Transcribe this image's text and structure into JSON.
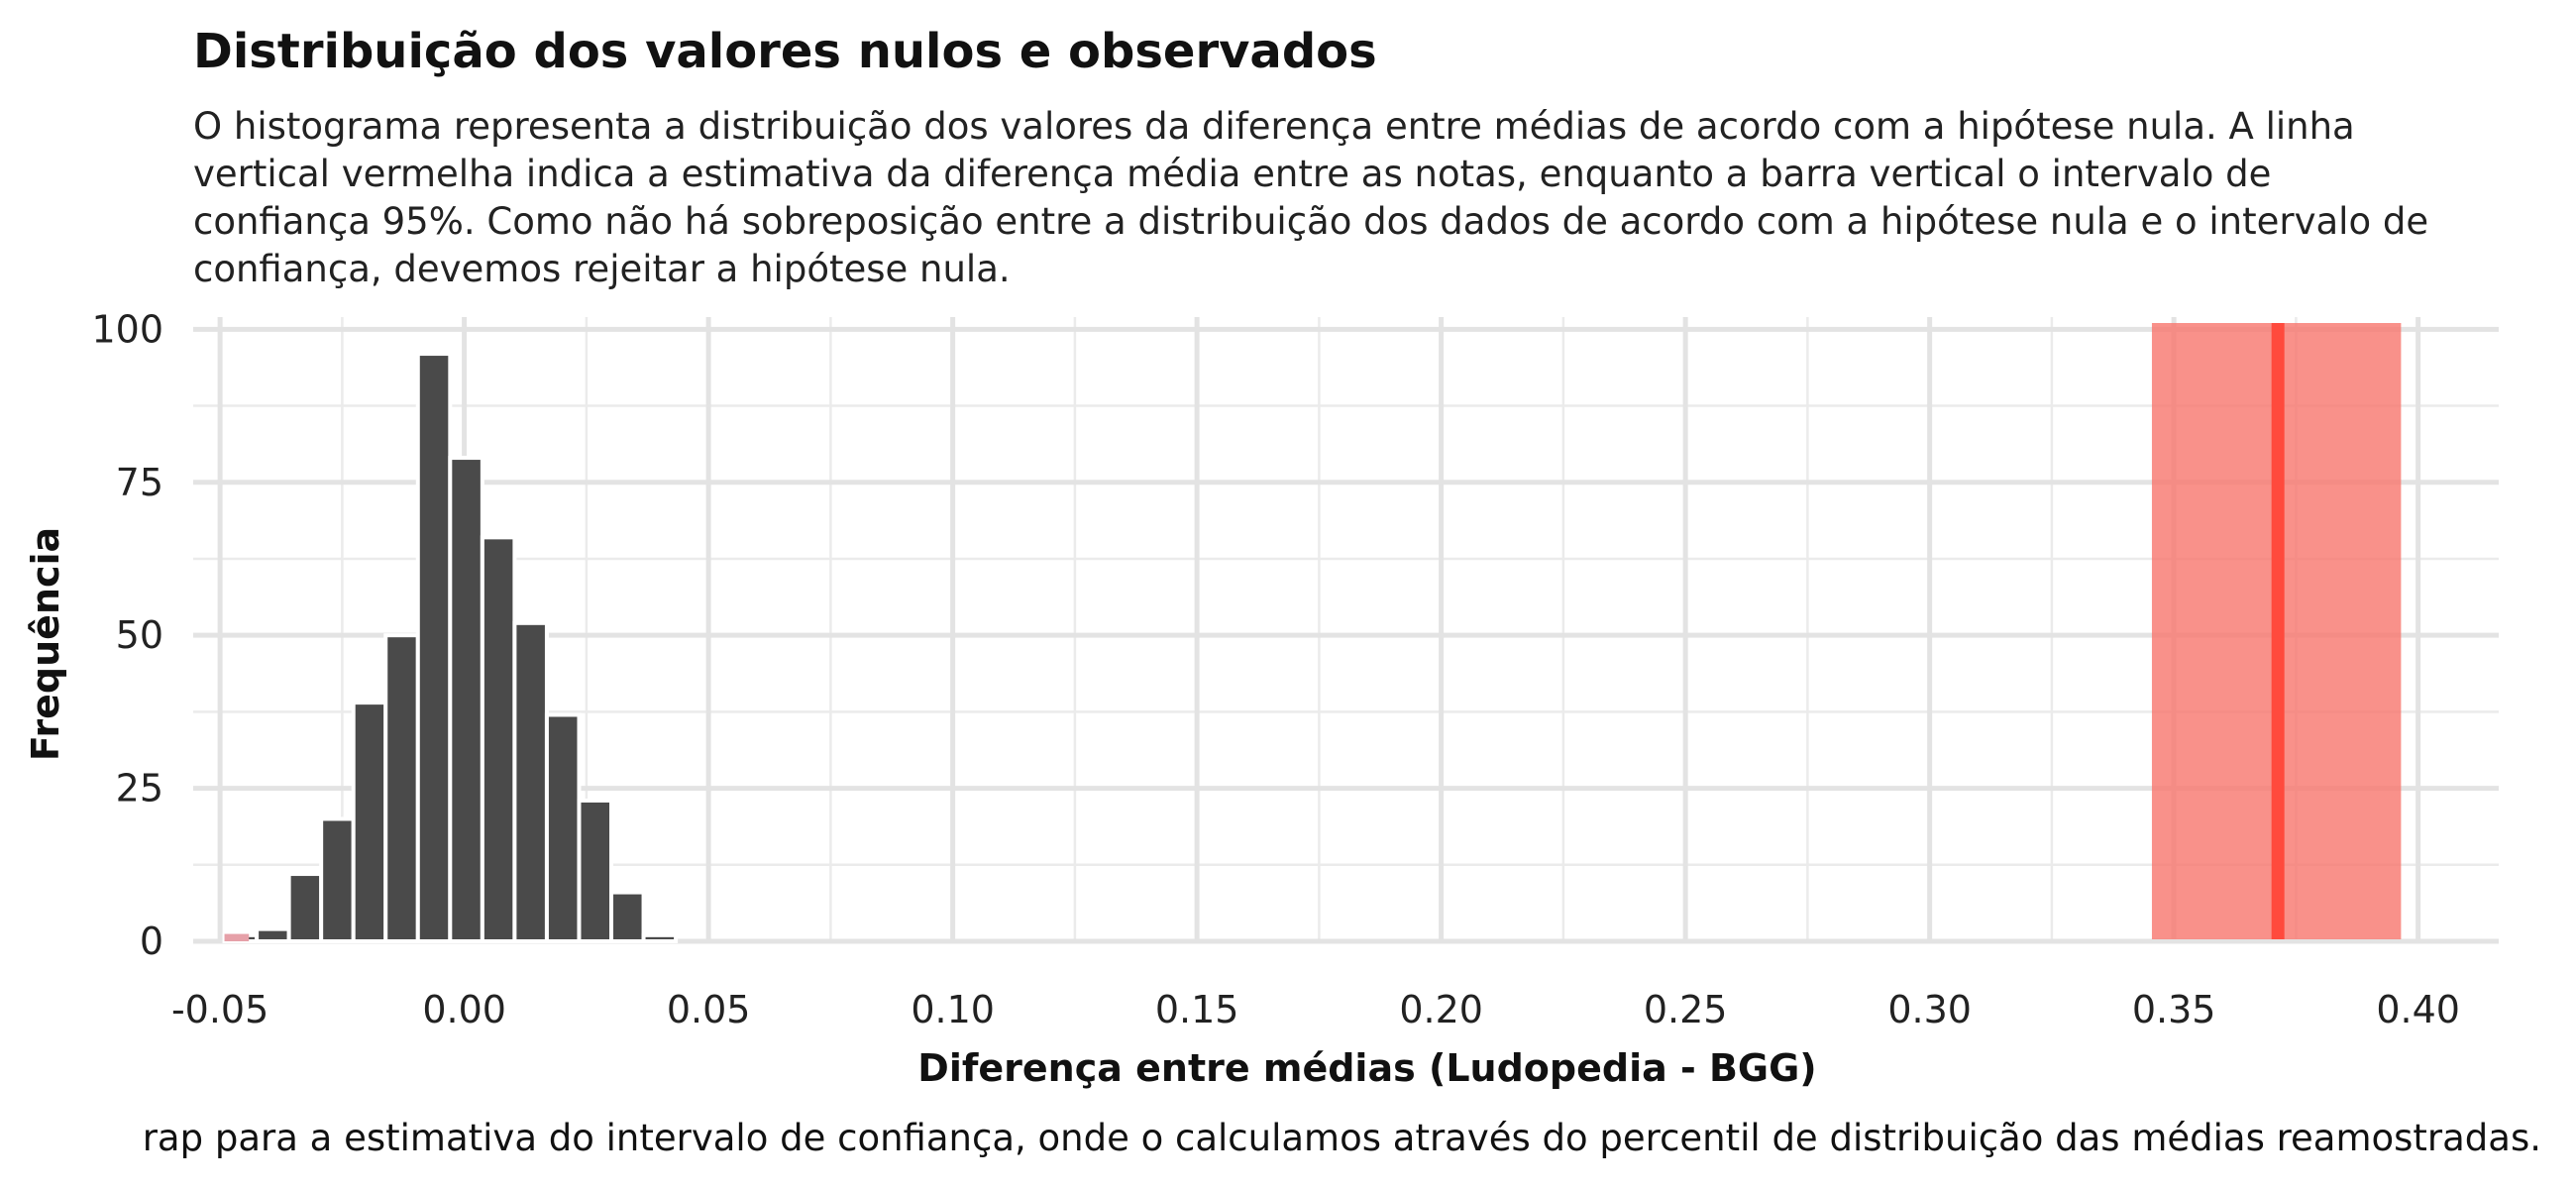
{
  "chart_data": {
    "type": "bar",
    "title": "Distribuição dos valores nulos e observados",
    "subtitle_lines": [
      "O histograma representa a distribuição dos valores da diferença entre médias de acordo com a hipótese nula. A linha",
      "vertical vermelha indica a estimativa da diferença média entre as notas, enquanto a barra vertical o intervalo de",
      "confiança 95%. Como não há sobreposição entre a distribuição dos dados de acordo com a hipótese nula e o intervalo de",
      "confiança, devemos rejeitar a hipótese nula."
    ],
    "xlabel": "Diferença entre médias (Ludopedia - BGG)",
    "ylabel": "Frequência",
    "caption": "rap para a estimativa do intervalo de confiança, onde o calculamos através do percentil de distribuição das médias reamostradas.",
    "xlim": [
      -0.0555,
      0.4165
    ],
    "ylim": [
      0,
      102
    ],
    "x_ticks": [
      -0.05,
      0.0,
      0.05,
      0.1,
      0.15,
      0.2,
      0.25,
      0.3,
      0.35,
      0.4
    ],
    "x_tick_labels": [
      "-0.05",
      "0.00",
      "0.05",
      "0.10",
      "0.15",
      "0.20",
      "0.25",
      "0.30",
      "0.35",
      "0.40"
    ],
    "y_ticks": [
      0,
      25,
      50,
      75,
      100
    ],
    "y_tick_labels": [
      "0",
      "25",
      "50",
      "75",
      "100"
    ],
    "grid": true,
    "histogram": {
      "bin_width": 0.0066,
      "x": [
        -0.0458,
        -0.0392,
        -0.0326,
        -0.026,
        -0.0194,
        -0.0128,
        -0.0062,
        0.0004,
        0.007,
        0.0136,
        0.0202,
        0.0268,
        0.0334,
        0.04
      ],
      "values": [
        1,
        2,
        11,
        20,
        39,
        50,
        96,
        79,
        66,
        52,
        37,
        23,
        8,
        1
      ],
      "color": "#4a4a4a"
    },
    "confidence_interval": {
      "low": 0.3455,
      "high": 0.3965,
      "color": "#f8766d",
      "opacity": 0.8
    },
    "estimate": {
      "x": 0.3713,
      "color": "#ff4a3d"
    },
    "highlight_bin": {
      "x_low": -0.0491,
      "x_high": -0.0441,
      "color": "#e6a0a8"
    }
  }
}
